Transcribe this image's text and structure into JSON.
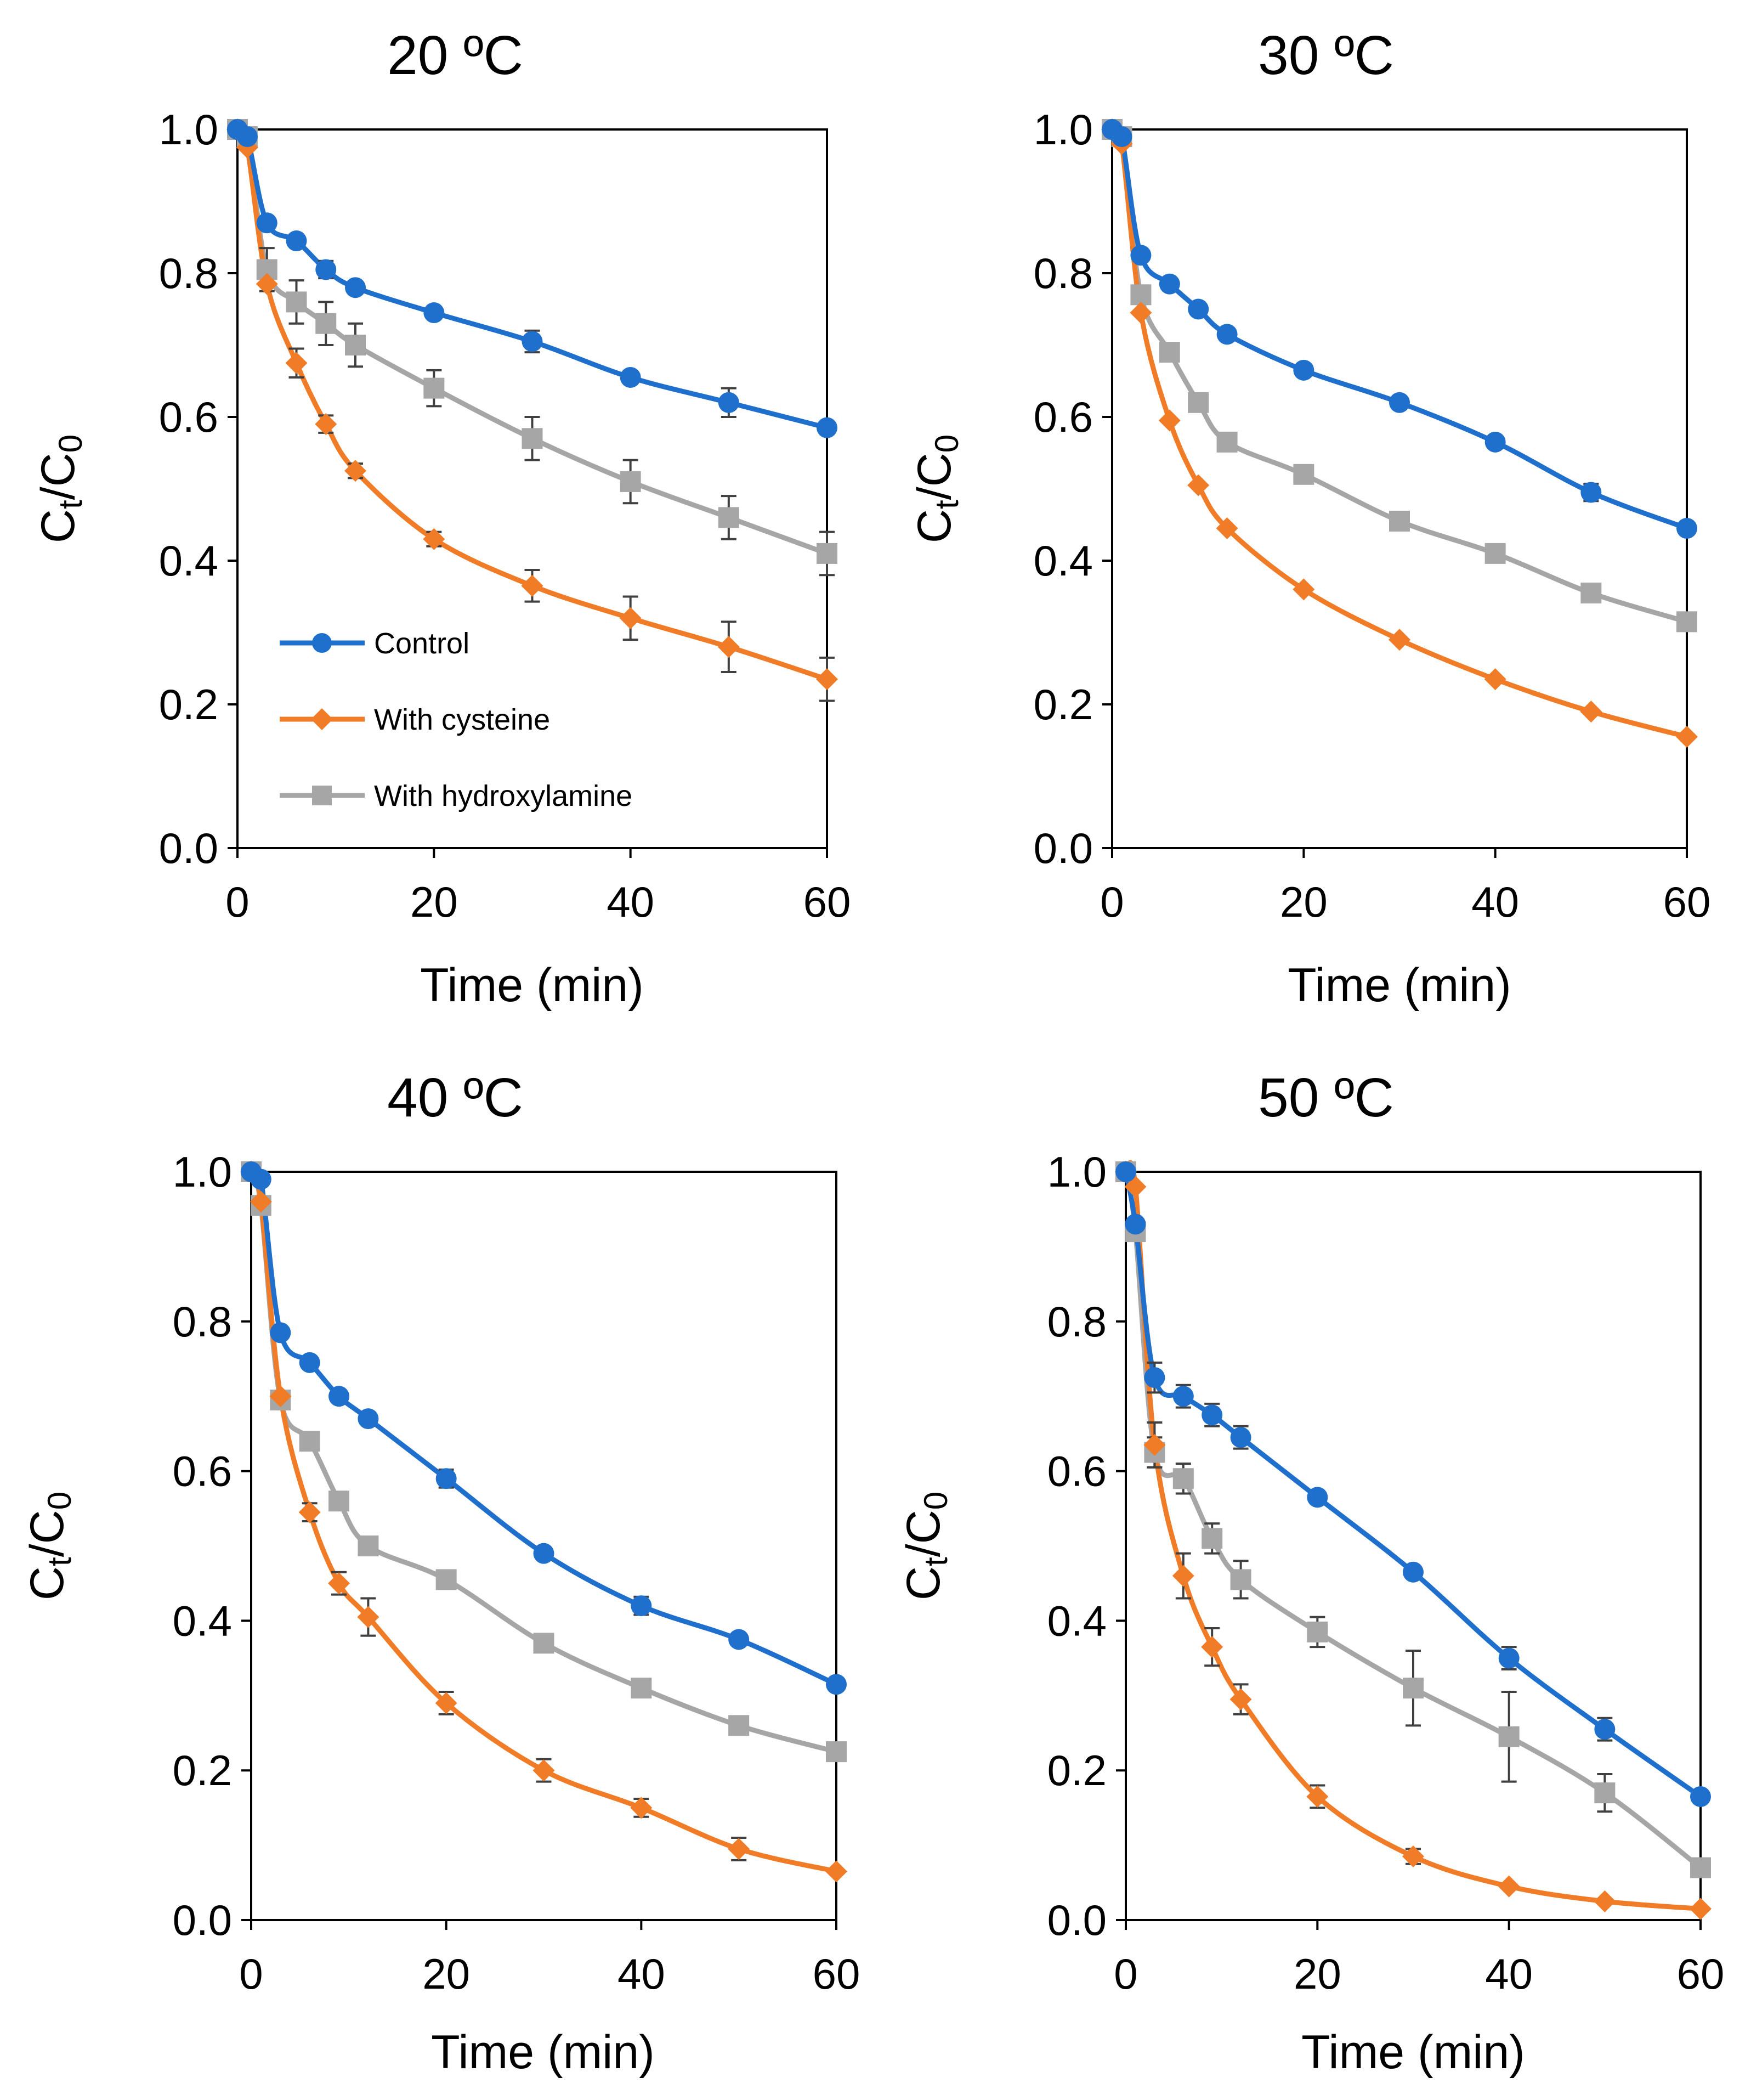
{
  "chart_data": [
    {
      "type": "line",
      "title": "20 ºC",
      "xlabel": "Time (min)",
      "ylabel_main": "C",
      "ylabel_sub1": "t",
      "ylabel_sep": "/C",
      "ylabel_sub2": "0",
      "xlim": [
        0,
        60
      ],
      "ylim": [
        0,
        1
      ],
      "xticks": [
        "0",
        "20",
        "40",
        "60"
      ],
      "yticks": [
        "0.0",
        "0.2",
        "0.4",
        "0.6",
        "0.8",
        "1.0"
      ],
      "x": [
        0,
        1,
        3,
        6,
        9,
        12,
        20,
        30,
        40,
        50,
        60
      ],
      "series": [
        {
          "name": "Control",
          "color": "#1f6fcc",
          "marker": "circle",
          "values": [
            1.0,
            0.99,
            0.87,
            0.845,
            0.805,
            0.78,
            0.745,
            0.705,
            0.655,
            0.62,
            0.585
          ],
          "errors": [
            0,
            0,
            0,
            0,
            0.012,
            0,
            0,
            0.015,
            0,
            0.02,
            0
          ]
        },
        {
          "name": "With cysteine",
          "color": "#f07c27",
          "marker": "diamond",
          "values": [
            1.0,
            0.975,
            0.785,
            0.675,
            0.59,
            0.525,
            0.43,
            0.365,
            0.32,
            0.28,
            0.235
          ],
          "errors": [
            0,
            0,
            0,
            0.02,
            0.012,
            0.01,
            0.01,
            0.022,
            0.03,
            0.035,
            0.03
          ]
        },
        {
          "name": "With hydroxylamine",
          "color": "#a6a6a6",
          "marker": "square",
          "values": [
            1.0,
            0.99,
            0.805,
            0.76,
            0.73,
            0.7,
            0.64,
            0.57,
            0.51,
            0.46,
            0.41
          ],
          "errors": [
            0,
            0,
            0.03,
            0.03,
            0.03,
            0.03,
            0.025,
            0.03,
            0.03,
            0.03,
            0.03
          ]
        }
      ],
      "legend": [
        "Control",
        "With cysteine",
        "With hydroxylamine"
      ]
    },
    {
      "type": "line",
      "title": "30 ºC",
      "xlabel": "Time (min)",
      "ylabel_main": "C",
      "ylabel_sub1": "t",
      "ylabel_sep": "/C",
      "ylabel_sub2": "0",
      "xlim": [
        0,
        60
      ],
      "ylim": [
        0,
        1
      ],
      "xticks": [
        "0",
        "20",
        "40",
        "60"
      ],
      "yticks": [
        "0.0",
        "0.2",
        "0.4",
        "0.6",
        "0.8",
        "1.0"
      ],
      "x": [
        0,
        1,
        3,
        6,
        9,
        12,
        20,
        30,
        40,
        50,
        60
      ],
      "series": [
        {
          "name": "Control",
          "color": "#1f6fcc",
          "marker": "circle",
          "values": [
            1.0,
            0.99,
            0.825,
            0.785,
            0.75,
            0.715,
            0.665,
            0.62,
            0.565,
            0.495,
            0.445
          ],
          "errors": [
            0,
            0,
            0,
            0,
            0,
            0,
            0,
            0,
            0,
            0.012,
            0
          ]
        },
        {
          "name": "With cysteine",
          "color": "#f07c27",
          "marker": "diamond",
          "values": [
            1.0,
            0.98,
            0.745,
            0.595,
            0.505,
            0.445,
            0.36,
            0.29,
            0.235,
            0.19,
            0.155
          ],
          "errors": [
            0,
            0,
            0,
            0,
            0,
            0,
            0,
            0,
            0,
            0,
            0
          ]
        },
        {
          "name": "With hydroxylamine",
          "color": "#a6a6a6",
          "marker": "square",
          "values": [
            1.0,
            0.99,
            0.77,
            0.69,
            0.62,
            0.565,
            0.52,
            0.455,
            0.41,
            0.355,
            0.315
          ],
          "errors": [
            0,
            0,
            0,
            0,
            0,
            0,
            0,
            0,
            0.012,
            0,
            0
          ]
        }
      ]
    },
    {
      "type": "line",
      "title": "40 ºC",
      "xlabel": "Time (min)",
      "ylabel_main": "C",
      "ylabel_sub1": "t",
      "ylabel_sep": "/C",
      "ylabel_sub2": "0",
      "xlim": [
        0,
        60
      ],
      "ylim": [
        0,
        1
      ],
      "xticks": [
        "0",
        "20",
        "40",
        "60"
      ],
      "yticks": [
        "0.0",
        "0.2",
        "0.4",
        "0.6",
        "0.8",
        "1.0"
      ],
      "x": [
        0,
        1,
        3,
        6,
        9,
        12,
        20,
        30,
        40,
        50,
        60
      ],
      "series": [
        {
          "name": "Control",
          "color": "#1f6fcc",
          "marker": "circle",
          "values": [
            1.0,
            0.99,
            0.785,
            0.745,
            0.7,
            0.67,
            0.59,
            0.49,
            0.42,
            0.375,
            0.315
          ],
          "errors": [
            0,
            0,
            0,
            0,
            0,
            0,
            0.012,
            0,
            0.012,
            0,
            0
          ]
        },
        {
          "name": "With cysteine",
          "color": "#f07c27",
          "marker": "diamond",
          "values": [
            1.0,
            0.96,
            0.7,
            0.545,
            0.45,
            0.405,
            0.29,
            0.2,
            0.15,
            0.095,
            0.065
          ],
          "errors": [
            0,
            0,
            0,
            0.012,
            0.015,
            0.025,
            0.015,
            0.015,
            0.012,
            0.015,
            0
          ]
        },
        {
          "name": "With hydroxylamine",
          "color": "#a6a6a6",
          "marker": "square",
          "values": [
            1.0,
            0.955,
            0.695,
            0.64,
            0.56,
            0.5,
            0.455,
            0.37,
            0.31,
            0.26,
            0.225
          ],
          "errors": [
            0,
            0,
            0,
            0,
            0,
            0,
            0,
            0,
            0,
            0,
            0
          ]
        }
      ]
    },
    {
      "type": "line",
      "title": "50 ºC",
      "xlabel": "Time (min)",
      "ylabel_main": "C",
      "ylabel_sub1": "t",
      "ylabel_sep": "/C",
      "ylabel_sub2": "0",
      "xlim": [
        0,
        60
      ],
      "ylim": [
        0,
        1
      ],
      "xticks": [
        "0",
        "20",
        "40",
        "60"
      ],
      "yticks": [
        "0.0",
        "0.2",
        "0.4",
        "0.6",
        "0.8",
        "1.0"
      ],
      "x": [
        0,
        1,
        3,
        6,
        9,
        12,
        20,
        30,
        40,
        50,
        60
      ],
      "series": [
        {
          "name": "Control",
          "color": "#1f6fcc",
          "marker": "circle",
          "values": [
            1.0,
            0.93,
            0.725,
            0.7,
            0.675,
            0.645,
            0.565,
            0.465,
            0.35,
            0.255,
            0.165
          ],
          "errors": [
            0,
            0,
            0.02,
            0.015,
            0.015,
            0.015,
            0,
            0,
            0.015,
            0.015,
            0
          ]
        },
        {
          "name": "With cysteine",
          "color": "#f07c27",
          "marker": "diamond",
          "values": [
            1.0,
            0.98,
            0.635,
            0.46,
            0.365,
            0.295,
            0.165,
            0.085,
            0.045,
            0.025,
            0.015
          ],
          "errors": [
            0,
            0,
            0.03,
            0.03,
            0.025,
            0.02,
            0.015,
            0.01,
            0,
            0,
            0
          ]
        },
        {
          "name": "With hydroxylamine",
          "color": "#a6a6a6",
          "marker": "square",
          "values": [
            1.0,
            0.92,
            0.625,
            0.59,
            0.51,
            0.455,
            0.385,
            0.31,
            0.245,
            0.17,
            0.07
          ],
          "errors": [
            0,
            0,
            0.02,
            0.02,
            0.02,
            0.025,
            0.02,
            0.05,
            0.06,
            0.025,
            0
          ]
        }
      ]
    }
  ]
}
